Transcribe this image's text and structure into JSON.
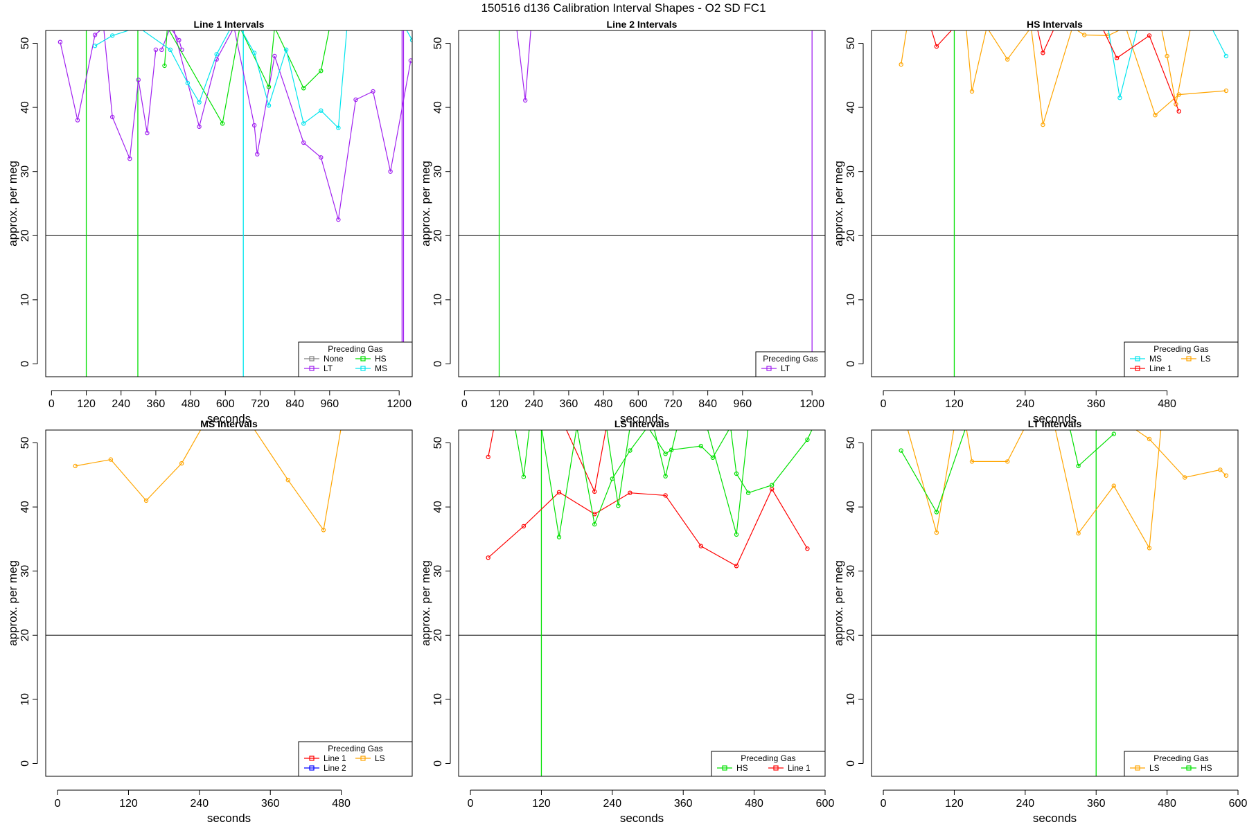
{
  "figure": {
    "title": "150516   d136   Calibration Interval Shapes - O2 SD FC1"
  },
  "colors": {
    "None": "#808080",
    "LT": "#a020f0",
    "HS": "#00e000",
    "MS": "#00e5ee",
    "Line 1": "#ff0000",
    "LS": "#ffa500",
    "Line 2": "#0000ff",
    "reference": "#000000"
  },
  "chart_data": [
    {
      "type": "line",
      "title": "Line 1 Intervals",
      "xlabel": "seconds",
      "ylabel": "approx. per meg",
      "xlim": [
        -20,
        1245
      ],
      "ylim": [
        -2,
        52
      ],
      "xticks": [
        0,
        120,
        240,
        360,
        480,
        600,
        720,
        840,
        960,
        1200
      ],
      "yticks": [
        0,
        10,
        20,
        30,
        40,
        50
      ],
      "reference_y": 20,
      "legend": {
        "title": "Preceding Gas",
        "position": "bottom-right",
        "entries": [
          "None",
          "LT",
          "HS",
          "MS"
        ],
        "columns": 2
      },
      "vlines": [
        {
          "series": "HS",
          "x": 120
        },
        {
          "series": "HS",
          "x": 298
        },
        {
          "series": "MS",
          "x": 662
        },
        {
          "series": "LT",
          "x": 1210
        },
        {
          "series": "LT",
          "x": 1215
        }
      ],
      "series": [
        {
          "name": "LT",
          "x": [
            30,
            90,
            150,
            180,
            210,
            270,
            300,
            330,
            360
          ],
          "y": [
            50.2,
            38.0,
            51.3,
            52.5,
            38.5,
            32.0,
            44.3,
            36.0,
            49.0
          ]
        },
        {
          "name": "LT",
          "x": [
            420,
            510,
            570,
            630,
            700,
            710,
            770,
            870,
            930,
            990,
            1050,
            1110,
            1170,
            1240
          ],
          "y": [
            52.5,
            37.0,
            47.5,
            52.5,
            37.2,
            32.7,
            48.0,
            34.5,
            32.2,
            22.5,
            41.2,
            42.5,
            30.0,
            47.3
          ]
        },
        {
          "name": "LT",
          "x": [
            380,
            410,
            440,
            450
          ],
          "y": [
            49.0,
            52.5,
            50.5,
            49.0
          ]
        },
        {
          "name": "HS",
          "x": [
            390,
            400,
            590,
            650,
            750,
            770,
            870,
            930,
            960
          ],
          "y": [
            46.5,
            52.5,
            37.5,
            52.5,
            43.2,
            52.5,
            43.0,
            45.7,
            52.5
          ]
        },
        {
          "name": "MS",
          "x": [
            150,
            210,
            300,
            410,
            470,
            510,
            570,
            620,
            650,
            700,
            750,
            810,
            870,
            930,
            990,
            1020
          ],
          "y": [
            49.6,
            51.2,
            52.5,
            49.0,
            43.8,
            40.8,
            48.3,
            52.5,
            52.5,
            48.5,
            40.3,
            49.0,
            37.5,
            39.5,
            36.8,
            52.5
          ]
        },
        {
          "name": "MS",
          "x": [
            1220,
            1245
          ],
          "y": [
            52.5,
            50.5
          ]
        }
      ]
    },
    {
      "type": "line",
      "title": "Line 2 Intervals",
      "xlabel": "seconds",
      "ylabel": "approx. per meg",
      "xlim": [
        -20,
        1245
      ],
      "ylim": [
        -2,
        52
      ],
      "xticks": [
        0,
        120,
        240,
        360,
        480,
        600,
        720,
        840,
        960,
        1200
      ],
      "yticks": [
        0,
        10,
        20,
        30,
        40,
        50
      ],
      "reference_y": 20,
      "legend": {
        "title": "Preceding Gas",
        "position": "bottom-right",
        "entries": [
          "LT"
        ],
        "columns": 1
      },
      "vlines": [
        {
          "series": "HS",
          "x": 120
        },
        {
          "series": "LT",
          "x": 1200
        }
      ],
      "series": [
        {
          "name": "LT",
          "x": [
            180,
            210,
            230
          ],
          "y": [
            52.5,
            41.1,
            52.5
          ]
        }
      ]
    },
    {
      "type": "line",
      "title": "HS Intervals",
      "xlabel": "seconds",
      "ylabel": "approx. per meg",
      "xlim": [
        -20,
        600
      ],
      "ylim": [
        -2,
        52
      ],
      "xticks": [
        0,
        120,
        240,
        360,
        480
      ],
      "yticks": [
        0,
        10,
        20,
        30,
        40,
        50
      ],
      "reference_y": 20,
      "legend": {
        "title": "Preceding Gas",
        "position": "bottom-right",
        "entries": [
          "MS",
          "Line 1",
          "LS"
        ],
        "columns": 2
      },
      "vlines": [
        {
          "series": "HS",
          "x": 120
        }
      ],
      "series": [
        {
          "name": "LS",
          "x": [
            30,
            40
          ],
          "y": [
            46.7,
            52.5
          ]
        },
        {
          "name": "LS",
          "x": [
            140,
            150,
            175,
            210,
            250,
            270,
            320,
            340,
            380,
            410,
            460,
            500,
            580
          ],
          "y": [
            52.5,
            42.5,
            52.5,
            47.5,
            52.5,
            37.3,
            52.5,
            51.3,
            51.2,
            52.5,
            38.8,
            42.0,
            42.6
          ]
        },
        {
          "name": "LS",
          "x": [
            470,
            480,
            495,
            520
          ],
          "y": [
            52.5,
            48.0,
            40.5,
            52.5
          ]
        },
        {
          "name": "MS",
          "x": [
            380,
            400,
            430,
            520,
            555,
            580
          ],
          "y": [
            52.5,
            41.5,
            52.5,
            52.5,
            52.5,
            48.0
          ]
        },
        {
          "name": "Line 1",
          "x": [
            80,
            90,
            120
          ],
          "y": [
            52.5,
            49.5,
            52.5
          ]
        },
        {
          "name": "Line 1",
          "x": [
            260,
            270,
            290
          ],
          "y": [
            52.5,
            48.5,
            52.5
          ]
        },
        {
          "name": "Line 1",
          "x": [
            370,
            395,
            450,
            500
          ],
          "y": [
            52.5,
            47.7,
            51.2,
            39.4
          ]
        }
      ]
    },
    {
      "type": "line",
      "title": "MS Intervals",
      "xlabel": "seconds",
      "ylabel": "approx. per meg",
      "xlim": [
        -20,
        600
      ],
      "ylim": [
        -2,
        52
      ],
      "xticks": [
        0,
        120,
        240,
        360,
        480
      ],
      "yticks": [
        0,
        10,
        20,
        30,
        40,
        50
      ],
      "reference_y": 20,
      "legend": {
        "title": "Preceding Gas",
        "position": "bottom-right",
        "entries": [
          "Line 1",
          "Line 2",
          "LS"
        ],
        "columns": 2
      },
      "vlines": [],
      "series": [
        {
          "name": "LS",
          "x": [
            30,
            90,
            150,
            210,
            245
          ],
          "y": [
            46.4,
            47.4,
            41.0,
            46.8,
            52.5
          ]
        },
        {
          "name": "LS",
          "x": [
            330,
            390,
            450,
            480
          ],
          "y": [
            52.5,
            44.2,
            36.4,
            52.5
          ]
        }
      ]
    },
    {
      "type": "line",
      "title": "LS Intervals",
      "xlabel": "seconds",
      "ylabel": "approx. per meg",
      "xlim": [
        -20,
        600
      ],
      "ylim": [
        -2,
        52
      ],
      "xticks": [
        0,
        120,
        240,
        360,
        480,
        600
      ],
      "yticks": [
        0,
        10,
        20,
        30,
        40,
        50
      ],
      "reference_y": 20,
      "legend": {
        "title": "Preceding Gas",
        "position": "bottom-right",
        "entries": [
          "HS",
          "Line 1"
        ],
        "columns": 2
      },
      "vlines": [
        {
          "series": "HS",
          "x": 120
        }
      ],
      "series": [
        {
          "name": "Line 1",
          "x": [
            30,
            40
          ],
          "y": [
            47.8,
            52.5
          ]
        },
        {
          "name": "Line 1",
          "x": [
            30,
            90,
            150,
            210,
            270,
            330,
            390,
            450,
            510,
            570
          ],
          "y": [
            32.1,
            37.0,
            42.3,
            38.9,
            42.2,
            41.8,
            33.9,
            30.8,
            42.8,
            33.5
          ]
        },
        {
          "name": "Line 1",
          "x": [
            160,
            210,
            230
          ],
          "y": [
            52.5,
            42.4,
            52.5
          ]
        },
        {
          "name": "HS",
          "x": [
            75,
            90,
            100,
            120,
            150,
            180,
            210,
            240,
            270,
            300,
            330,
            340,
            390,
            410,
            440,
            450,
            470,
            510,
            570,
            580
          ],
          "y": [
            52.5,
            44.7,
            52.5,
            52.5,
            35.3,
            52.5,
            37.3,
            44.4,
            48.8,
            52.5,
            48.3,
            48.9,
            49.5,
            47.7,
            52.5,
            45.2,
            42.2,
            43.4,
            50.5,
            52.5
          ]
        },
        {
          "name": "HS",
          "x": [
            230,
            250,
            270
          ],
          "y": [
            52.5,
            40.2,
            52.5
          ]
        },
        {
          "name": "HS",
          "x": [
            310,
            330,
            350
          ],
          "y": [
            52.5,
            44.8,
            52.5
          ]
        },
        {
          "name": "HS",
          "x": [
            400,
            450,
            470,
            480
          ],
          "y": [
            52.5,
            35.7,
            52.5,
            52.5
          ]
        }
      ]
    },
    {
      "type": "line",
      "title": "LT Intervals",
      "xlabel": "seconds",
      "ylabel": "approx. per meg",
      "xlim": [
        -20,
        600
      ],
      "ylim": [
        -2,
        52
      ],
      "xticks": [
        0,
        120,
        240,
        360,
        480,
        600
      ],
      "yticks": [
        0,
        10,
        20,
        30,
        40,
        50
      ],
      "reference_y": 20,
      "legend": {
        "title": "Preceding Gas",
        "position": "bottom-right",
        "entries": [
          "LS",
          "HS"
        ],
        "columns": 2
      },
      "vlines": [
        {
          "series": "HS",
          "x": 360
        }
      ],
      "series": [
        {
          "name": "LS",
          "x": [
            40,
            90,
            120
          ],
          "y": [
            52.5,
            36.0,
            52.5
          ]
        },
        {
          "name": "LS",
          "x": [
            140,
            150,
            210,
            240
          ],
          "y": [
            52.5,
            47.1,
            47.1,
            52.5
          ]
        },
        {
          "name": "LS",
          "x": [
            290,
            330,
            390,
            450,
            470
          ],
          "y": [
            52.5,
            35.9,
            43.3,
            33.6,
            52.5
          ]
        },
        {
          "name": "LS",
          "x": [
            420,
            450,
            510,
            570,
            580
          ],
          "y": [
            52.5,
            50.6,
            44.6,
            45.8,
            44.9
          ]
        },
        {
          "name": "LS",
          "x": [
            530,
            570
          ],
          "y": [
            52.5,
            52.5
          ]
        },
        {
          "name": "HS",
          "x": [
            30,
            90,
            140
          ],
          "y": [
            48.8,
            39.2,
            52.5
          ]
        },
        {
          "name": "HS",
          "x": [
            315,
            330,
            390
          ],
          "y": [
            52.5,
            46.4,
            51.4
          ]
        }
      ]
    }
  ]
}
